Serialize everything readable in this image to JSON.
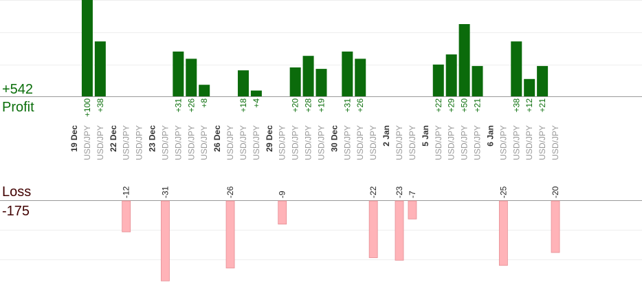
{
  "summary": {
    "profit_value": "+542",
    "profit_label": "Profit",
    "loss_label": "Loss",
    "loss_value": "-175"
  },
  "colors": {
    "profit_bar": "#0b6b0b",
    "profit_text": "#0a6e0a",
    "loss_bar": "#ffb3b8",
    "loss_border": "#e58c93",
    "loss_text": "#400000",
    "date_text": "#333333",
    "pair_text": "#999999",
    "grid": "#eeeeee",
    "axis": "#999999"
  },
  "chart_data": {
    "type": "bar",
    "xlabel": "",
    "ylabel": "",
    "columns": [
      {
        "date": "19 Dec"
      },
      {
        "pair": "USD/JPY",
        "value": 100
      },
      {
        "pair": "USD/JPY",
        "value": 38
      },
      {
        "date": "22 Dec"
      },
      {
        "pair": "USD/JPY",
        "value": -12
      },
      {
        "pair": "USD/JPY",
        "value": null
      },
      {
        "date": "23 Dec"
      },
      {
        "pair": "USD/JPY",
        "value": -31
      },
      {
        "pair": "USD/JPY",
        "value": 31
      },
      {
        "pair": "USD/JPY",
        "value": 26
      },
      {
        "pair": "USD/JPY",
        "value": 8
      },
      {
        "date": "26 Dec"
      },
      {
        "pair": "USD/JPY",
        "value": -26
      },
      {
        "pair": "USD/JPY",
        "value": 18
      },
      {
        "pair": "USD/JPY",
        "value": 4
      },
      {
        "date": "29 Dec"
      },
      {
        "pair": "USD/JPY",
        "value": -9
      },
      {
        "pair": "USD/JPY",
        "value": 20
      },
      {
        "pair": "USD/JPY",
        "value": 28
      },
      {
        "pair": "USD/JPY",
        "value": 19
      },
      {
        "date": "30 Dec"
      },
      {
        "pair": "USD/JPY",
        "value": 31
      },
      {
        "pair": "USD/JPY",
        "value": 26
      },
      {
        "pair": "USD/JPY",
        "value": -22
      },
      {
        "date": "2 Jan"
      },
      {
        "pair": "USD/JPY",
        "value": -23
      },
      {
        "pair": "USD/JPY",
        "value": -7
      },
      {
        "date": "5 Jan"
      },
      {
        "pair": "USD/JPY",
        "value": 22
      },
      {
        "pair": "USD/JPY",
        "value": 29
      },
      {
        "pair": "USD/JPY",
        "value": 50
      },
      {
        "pair": "USD/JPY",
        "value": 21
      },
      {
        "date": "6 Jan"
      },
      {
        "pair": "USD/JPY",
        "value": -25
      },
      {
        "pair": "USD/JPY",
        "value": 38
      },
      {
        "pair": "USD/JPY",
        "value": 12
      },
      {
        "pair": "USD/JPY",
        "value": 21
      },
      {
        "pair": "USD/JPY",
        "value": -20
      }
    ]
  }
}
